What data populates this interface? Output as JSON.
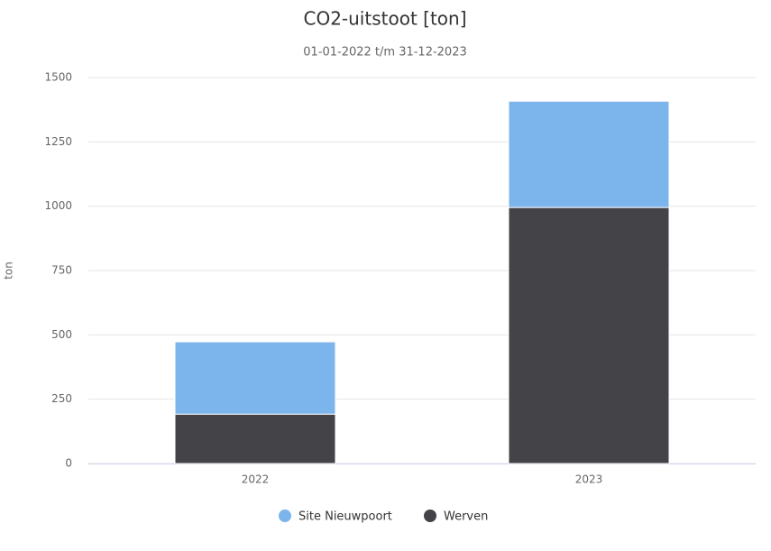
{
  "chart_data": {
    "type": "stacked-bar",
    "title": "CO2-uitstoot [ton]",
    "subtitle": "01-01-2022 t/m 31-12-2023",
    "y_label": "ton",
    "categories": [
      "2022",
      "2023"
    ],
    "series": [
      {
        "name": "Site Nieuwpoort",
        "color": "#7cb5ec",
        "values": [
          281,
          413
        ]
      },
      {
        "name": "Werven",
        "color": "#434348",
        "values": [
          192,
          995
        ]
      }
    ],
    "ylim": [
      0,
      1500
    ],
    "yticks": [
      0,
      250,
      500,
      750,
      1000,
      1250,
      1500
    ],
    "grid": true,
    "legend": "bottom"
  }
}
